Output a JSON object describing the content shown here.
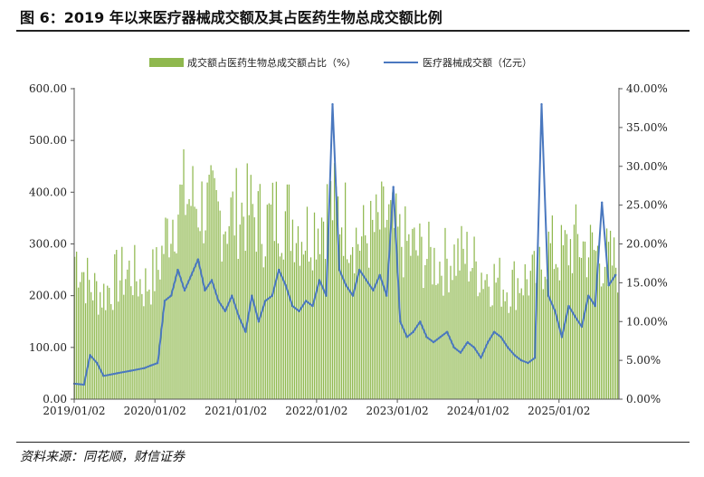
{
  "figure": {
    "title": "图 6：2019 年以来医疗器械成交额及其占医药生物总成交额比例",
    "source": "资料来源：同花顺，财信证券"
  },
  "chart_data": {
    "type": "bar+line",
    "legend": [
      "成交额占医药生物总成交额占比（%）",
      "医疗器械成交额（亿元）"
    ],
    "legend_placement": "top-center",
    "grid": false,
    "y_left": {
      "ticks": [
        "0.00",
        "100.00",
        "200.00",
        "300.00",
        "400.00",
        "500.00",
        "600.00"
      ],
      "range": [
        0,
        600
      ]
    },
    "y_right": {
      "ticks": [
        "0.00%",
        "5.00%",
        "10.00%",
        "15.00%",
        "20.00%",
        "25.00%",
        "30.00%",
        "35.00%",
        "40.00%"
      ],
      "range": [
        0,
        40
      ]
    },
    "x_ticks": [
      "2019/01/02",
      "2020/01/02",
      "2021/01/02",
      "2022/01/02",
      "2023/01/02",
      "2024/01/02",
      "2025/01/02"
    ],
    "series": [
      {
        "name": "成交额占医药生物总成交额占比（%）",
        "kind": "bar",
        "axis": "right",
        "color": "#8fb84e",
        "points": [
          [
            "2019/01",
            19
          ],
          [
            "2019/03",
            15
          ],
          [
            "2019/05",
            14
          ],
          [
            "2019/07",
            16
          ],
          [
            "2019/09",
            17
          ],
          [
            "2019/11",
            15
          ],
          [
            "2020/01",
            17
          ],
          [
            "2020/03",
            24
          ],
          [
            "2020/05",
            27
          ],
          [
            "2020/07",
            26
          ],
          [
            "2020/09",
            25
          ],
          [
            "2020/11",
            24
          ],
          [
            "2021/01",
            25
          ],
          [
            "2021/03",
            25
          ],
          [
            "2021/05",
            23
          ],
          [
            "2021/07",
            25
          ],
          [
            "2021/09",
            24
          ],
          [
            "2021/11",
            22
          ],
          [
            "2022/01",
            24
          ],
          [
            "2022/03",
            26
          ],
          [
            "2022/05",
            24
          ],
          [
            "2022/07",
            21
          ],
          [
            "2022/09",
            22
          ],
          [
            "2022/11",
            24
          ],
          [
            "2023/01",
            21
          ],
          [
            "2023/03",
            20
          ],
          [
            "2023/05",
            19
          ],
          [
            "2023/07",
            18
          ],
          [
            "2023/09",
            19
          ],
          [
            "2023/11",
            19
          ],
          [
            "2024/01",
            17
          ],
          [
            "2024/03",
            16
          ],
          [
            "2024/05",
            15
          ],
          [
            "2024/07",
            16
          ],
          [
            "2024/09",
            16
          ],
          [
            "2024/11",
            20
          ],
          [
            "2025/01",
            19
          ],
          [
            "2025/03",
            21
          ],
          [
            "2025/05",
            20
          ],
          [
            "2025/07",
            19
          ],
          [
            "2025/09",
            18
          ]
        ]
      },
      {
        "name": "医疗器械成交额（亿元）",
        "kind": "line",
        "axis": "left",
        "color": "#4a78bf",
        "points": [
          [
            "2019/01/02",
            30
          ],
          [
            "2019/02",
            28
          ],
          [
            "2019/03",
            85
          ],
          [
            "2019/04",
            70
          ],
          [
            "2019/05",
            45
          ],
          [
            "2019/07",
            50
          ],
          [
            "2019/09",
            55
          ],
          [
            "2019/11",
            60
          ],
          [
            "2019/12",
            65
          ],
          [
            "2020/01",
            70
          ],
          [
            "2020/02",
            190
          ],
          [
            "2020/03",
            200
          ],
          [
            "2020/04",
            250
          ],
          [
            "2020/05",
            210
          ],
          [
            "2020/06",
            240
          ],
          [
            "2020/07",
            270
          ],
          [
            "2020/08",
            210
          ],
          [
            "2020/09",
            230
          ],
          [
            "2020/10",
            190
          ],
          [
            "2020/11",
            170
          ],
          [
            "2020/12",
            200
          ],
          [
            "2021/01",
            160
          ],
          [
            "2021/02",
            130
          ],
          [
            "2021/03",
            200
          ],
          [
            "2021/04",
            150
          ],
          [
            "2021/05",
            190
          ],
          [
            "2021/06",
            200
          ],
          [
            "2021/07",
            250
          ],
          [
            "2021/08",
            220
          ],
          [
            "2021/09",
            180
          ],
          [
            "2021/10",
            170
          ],
          [
            "2021/11",
            190
          ],
          [
            "2021/12",
            180
          ],
          [
            "2022/01",
            230
          ],
          [
            "2022/02",
            200
          ],
          [
            "2022/03",
            570
          ],
          [
            "2022/04",
            250
          ],
          [
            "2022/05",
            220
          ],
          [
            "2022/06",
            200
          ],
          [
            "2022/07",
            250
          ],
          [
            "2022/08",
            230
          ],
          [
            "2022/09",
            210
          ],
          [
            "2022/10",
            240
          ],
          [
            "2022/11",
            200
          ],
          [
            "2022/12",
            410
          ],
          [
            "2023/01",
            150
          ],
          [
            "2023/02",
            120
          ],
          [
            "2023/03",
            130
          ],
          [
            "2023/04",
            150
          ],
          [
            "2023/05",
            120
          ],
          [
            "2023/06",
            110
          ],
          [
            "2023/07",
            120
          ],
          [
            "2023/08",
            130
          ],
          [
            "2023/09",
            100
          ],
          [
            "2023/10",
            90
          ],
          [
            "2023/11",
            110
          ],
          [
            "2023/12",
            100
          ],
          [
            "2024/01",
            80
          ],
          [
            "2024/02",
            110
          ],
          [
            "2024/03",
            130
          ],
          [
            "2024/04",
            120
          ],
          [
            "2024/05",
            100
          ],
          [
            "2024/06",
            85
          ],
          [
            "2024/07",
            75
          ],
          [
            "2024/08",
            70
          ],
          [
            "2024/09",
            80
          ],
          [
            "2024/10",
            570
          ],
          [
            "2024/11",
            200
          ],
          [
            "2024/12",
            170
          ],
          [
            "2025/01",
            120
          ],
          [
            "2025/02",
            180
          ],
          [
            "2025/03",
            160
          ],
          [
            "2025/04",
            140
          ],
          [
            "2025/05",
            200
          ],
          [
            "2025/06",
            180
          ],
          [
            "2025/07",
            380
          ],
          [
            "2025/08",
            220
          ],
          [
            "2025/09",
            240
          ]
        ]
      }
    ]
  }
}
